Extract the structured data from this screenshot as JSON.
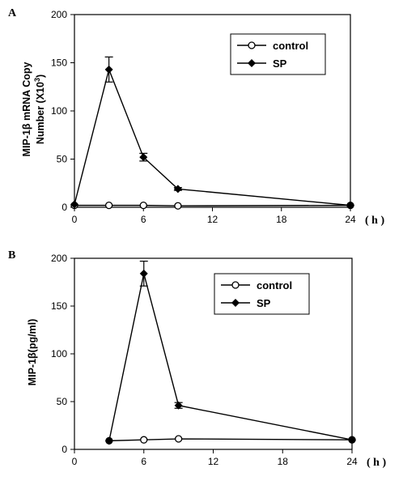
{
  "chart_data": [
    {
      "panel": "A",
      "type": "line",
      "ylabel_line1": "MIP-1β mRNA Copy",
      "ylabel_line2": "Number (X10",
      "ylabel_sup": "3",
      "ylabel_close": ")",
      "xunit": "( h )",
      "xlim": [
        0,
        24
      ],
      "ylim": [
        0,
        200
      ],
      "xticks": [
        0,
        6,
        12,
        18,
        24
      ],
      "yticks": [
        0,
        50,
        100,
        150,
        200
      ],
      "legend_position": "top-right",
      "grid": false,
      "series": [
        {
          "name": "control",
          "marker": "circle-open",
          "x": [
            0,
            3,
            6,
            9,
            24
          ],
          "y": [
            2,
            2,
            2,
            1.5,
            2
          ],
          "err": [
            0,
            0,
            0,
            0,
            0
          ]
        },
        {
          "name": "SP",
          "marker": "diamond-filled",
          "x": [
            0,
            3,
            6,
            9,
            24
          ],
          "y": [
            3,
            143,
            52,
            19,
            2
          ],
          "err": [
            0,
            13,
            4,
            1.5,
            0
          ]
        }
      ]
    },
    {
      "panel": "B",
      "type": "line",
      "ylabel_line1": "MIP-1β(pg/ml)",
      "xunit": "( h )",
      "xlim": [
        0,
        24
      ],
      "ylim": [
        0,
        200
      ],
      "xticks": [
        0,
        6,
        12,
        18,
        24
      ],
      "yticks": [
        0,
        50,
        100,
        150,
        200
      ],
      "legend_position": "top-right",
      "grid": false,
      "series": [
        {
          "name": "control",
          "marker": "circle-open",
          "x": [
            3,
            6,
            9,
            24
          ],
          "y": [
            9,
            10,
            11,
            10
          ],
          "err": [
            0,
            0,
            0,
            0
          ]
        },
        {
          "name": "SP",
          "marker": "diamond-filled",
          "x": [
            3,
            6,
            9,
            24
          ],
          "y": [
            9,
            184,
            46,
            10
          ],
          "err": [
            0,
            13,
            3,
            0
          ]
        }
      ]
    }
  ]
}
